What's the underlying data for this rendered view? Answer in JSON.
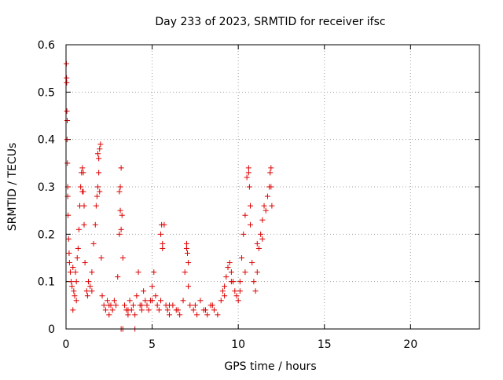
{
  "chart_data": {
    "type": "scatter",
    "title": "Day 233 of 2023, SRMTID for receiver ifsc",
    "xlabel": "GPS time / hours",
    "ylabel": "SRMTID / TECUs",
    "xlim": [
      0,
      24
    ],
    "ylim": [
      0,
      0.6
    ],
    "xticks": [
      0,
      5,
      10,
      15,
      20
    ],
    "xtick_labels": [
      "0",
      "5",
      "10",
      "15",
      "20"
    ],
    "yticks": [
      0,
      0.1,
      0.2,
      0.3,
      0.4,
      0.5,
      0.6
    ],
    "ytick_labels": [
      "0",
      "0.1",
      "0.2",
      "0.3",
      "0.4",
      "0.5",
      "0.6"
    ],
    "grid": true,
    "marker": "+",
    "marker_color": "#dd0000",
    "series": [
      {
        "name": "SRMTID",
        "x": [
          0.02,
          0.03,
          0.05,
          0.06,
          0.08,
          0.1,
          0.12,
          0.15,
          0.18,
          0.2,
          0.25,
          0.3,
          0.35,
          0.4,
          0.45,
          0.5,
          0.55,
          0.6,
          0.65,
          0.7,
          0.75,
          0.8,
          0.85,
          0.9,
          0.95,
          1.0,
          1.05,
          1.1,
          1.2,
          1.25,
          1.3,
          1.4,
          1.5,
          1.6,
          1.7,
          1.75,
          1.8,
          1.85,
          1.9,
          1.95,
          2.0,
          2.05,
          2.1,
          2.2,
          2.3,
          2.4,
          2.5,
          2.6,
          2.7,
          2.8,
          2.9,
          3.0,
          3.1,
          3.15,
          3.2,
          3.25,
          3.3,
          3.4,
          3.5,
          3.6,
          3.7,
          3.8,
          3.9,
          4.0,
          4.1,
          4.2,
          4.3,
          4.4,
          4.5,
          4.6,
          4.7,
          4.8,
          4.9,
          5.0,
          5.1,
          5.2,
          5.3,
          5.4,
          5.5,
          5.6,
          5.7,
          5.8,
          5.9,
          6.0,
          6.2,
          6.4,
          6.6,
          6.8,
          6.9,
          7.0,
          7.1,
          7.2,
          7.4,
          7.6,
          7.8,
          8.0,
          8.2,
          8.4,
          8.6,
          8.8,
          9.0,
          9.1,
          9.2,
          9.3,
          9.4,
          9.5,
          9.6,
          9.7,
          9.8,
          9.9,
          10.0,
          10.1,
          10.2,
          10.3,
          10.4,
          10.5,
          10.6,
          10.7,
          10.8,
          10.9,
          11.0,
          11.1,
          11.2,
          11.3,
          11.4,
          11.5,
          11.6,
          11.7,
          11.8,
          11.9,
          0.04,
          0.07,
          0.1,
          0.95,
          1.0,
          1.05,
          1.85,
          1.9,
          1.95,
          3.1,
          3.15,
          3.2,
          5.5,
          5.55,
          5.6,
          7.0,
          7.05,
          7.1,
          10.6,
          10.65,
          10.7,
          11.85,
          11.9,
          11.95,
          3.2,
          3.3,
          4.0,
          0.4,
          0.6,
          1.5,
          2.5,
          3.6,
          4.4,
          5.0,
          6.0,
          6.5,
          7.5,
          8.1,
          8.5,
          9.2,
          9.6,
          10.1,
          10.4,
          11.1,
          11.4
        ],
        "y": [
          0.56,
          0.53,
          0.46,
          0.4,
          0.35,
          0.28,
          0.24,
          0.19,
          0.16,
          0.14,
          0.12,
          0.1,
          0.09,
          0.13,
          0.08,
          0.07,
          0.12,
          0.1,
          0.15,
          0.17,
          0.21,
          0.26,
          0.3,
          0.33,
          0.34,
          0.29,
          0.22,
          0.14,
          0.08,
          0.07,
          0.1,
          0.09,
          0.12,
          0.18,
          0.22,
          0.26,
          0.28,
          0.3,
          0.36,
          0.38,
          0.39,
          0.15,
          0.07,
          0.05,
          0.04,
          0.06,
          0.03,
          0.05,
          0.04,
          0.06,
          0.05,
          0.11,
          0.2,
          0.3,
          0.34,
          0.24,
          0.15,
          0.05,
          0.04,
          0.03,
          0.06,
          0.04,
          0.05,
          0.03,
          0.07,
          0.12,
          0.05,
          0.04,
          0.08,
          0.06,
          0.05,
          0.04,
          0.06,
          0.09,
          0.12,
          0.07,
          0.05,
          0.04,
          0.06,
          0.17,
          0.22,
          0.05,
          0.04,
          0.03,
          0.05,
          0.04,
          0.03,
          0.06,
          0.12,
          0.17,
          0.09,
          0.05,
          0.04,
          0.03,
          0.06,
          0.04,
          0.03,
          0.05,
          0.04,
          0.03,
          0.06,
          0.08,
          0.09,
          0.11,
          0.13,
          0.14,
          0.12,
          0.1,
          0.08,
          0.07,
          0.06,
          0.1,
          0.15,
          0.2,
          0.24,
          0.32,
          0.33,
          0.22,
          0.14,
          0.1,
          0.08,
          0.12,
          0.17,
          0.2,
          0.23,
          0.26,
          0.25,
          0.28,
          0.3,
          0.34,
          0.52,
          0.44,
          0.3,
          0.29,
          0.33,
          0.26,
          0.37,
          0.33,
          0.29,
          0.29,
          0.25,
          0.21,
          0.2,
          0.22,
          0.18,
          0.18,
          0.16,
          0.14,
          0.34,
          0.3,
          0.26,
          0.33,
          0.3,
          0.26,
          0.0,
          0.0,
          0.0,
          0.04,
          0.06,
          0.08,
          0.05,
          0.04,
          0.05,
          0.06,
          0.05,
          0.04,
          0.05,
          0.04,
          0.05,
          0.07,
          0.1,
          0.08,
          0.12,
          0.18,
          0.19
        ]
      }
    ]
  }
}
